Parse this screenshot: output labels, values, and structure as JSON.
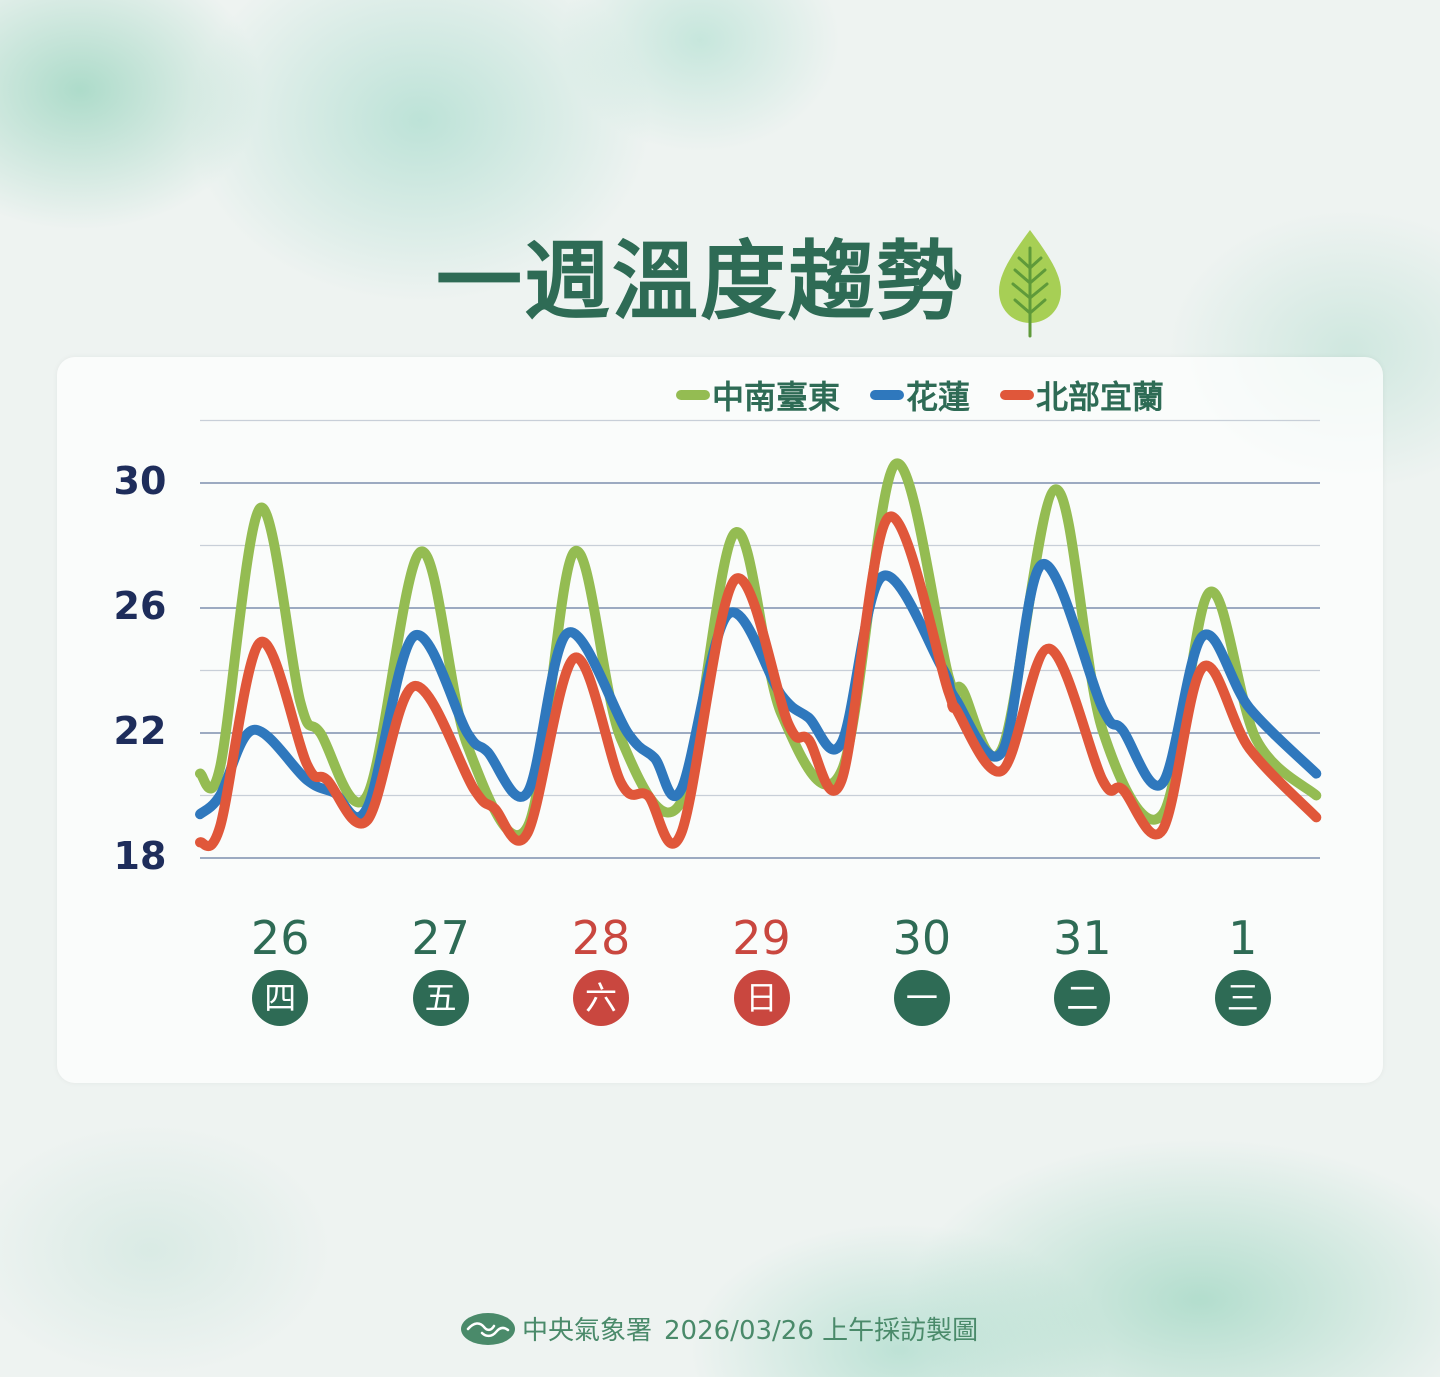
{
  "title": "一週溫度趨勢",
  "footer": {
    "agency": "中央氣象署",
    "text": "2026/03/26 上午採訪製圖"
  },
  "chart_data": {
    "type": "line",
    "title": "一週溫度趨勢",
    "xlabel": "",
    "ylabel": "",
    "ylim": [
      18,
      32
    ],
    "yticks": [
      "18",
      "22",
      "26",
      "30"
    ],
    "grid": true,
    "legend": "top-right",
    "days": [
      {
        "date": "26",
        "weekday": "四",
        "weekend": false
      },
      {
        "date": "27",
        "weekday": "五",
        "weekend": false
      },
      {
        "date": "28",
        "weekday": "六",
        "weekend": true
      },
      {
        "date": "29",
        "weekday": "日",
        "weekend": true
      },
      {
        "date": "30",
        "weekday": "一",
        "weekend": false
      },
      {
        "date": "31",
        "weekday": "二",
        "weekend": false
      },
      {
        "date": "1",
        "weekday": "三",
        "weekend": false
      }
    ],
    "series": [
      {
        "name": "中南臺東",
        "color": "#94bc52",
        "points": [
          [
            "03-26 00",
            20.7
          ],
          [
            "03-26 03",
            20.9
          ],
          [
            "03-26 09",
            29.2
          ],
          [
            "03-26 15",
            23.0
          ],
          [
            "03-26 18",
            22.0
          ],
          [
            "03-27 01",
            20.0
          ],
          [
            "03-27 09",
            27.8
          ],
          [
            "03-27 16",
            21.6
          ],
          [
            "03-28 01",
            19.0
          ],
          [
            "03-28 08",
            27.8
          ],
          [
            "03-28 15",
            21.8
          ],
          [
            "03-29 00",
            19.8
          ],
          [
            "03-29 08",
            28.4
          ],
          [
            "03-29 15",
            22.6
          ],
          [
            "03-30 00",
            20.8
          ],
          [
            "03-30 08",
            30.6
          ],
          [
            "03-30 16",
            23.8
          ],
          [
            "03-30 18",
            23.4
          ],
          [
            "03-31 00",
            21.5
          ],
          [
            "03-31 08",
            29.8
          ],
          [
            "03-31 15",
            22.1
          ],
          [
            "04-01 00",
            19.4
          ],
          [
            "04-01 07",
            26.5
          ],
          [
            "04-01 14",
            21.8
          ],
          [
            "04-01 23",
            20.0
          ]
        ]
      },
      {
        "name": "花蓮",
        "color": "#2f78bd",
        "points": [
          [
            "03-26 00",
            19.4
          ],
          [
            "03-26 03",
            20.0
          ],
          [
            "03-26 08",
            22.1
          ],
          [
            "03-26 16",
            20.5
          ],
          [
            "03-26 20",
            20.1
          ],
          [
            "03-27 01",
            19.6
          ],
          [
            "03-27 08",
            25.1
          ],
          [
            "03-27 16",
            22.0
          ],
          [
            "03-27 19",
            21.4
          ],
          [
            "03-28 01",
            20.1
          ],
          [
            "03-28 07",
            25.2
          ],
          [
            "03-28 16",
            22.0
          ],
          [
            "03-28 20",
            21.2
          ],
          [
            "03-29 00",
            20.2
          ],
          [
            "03-29 07",
            25.8
          ],
          [
            "03-29 15",
            23.2
          ],
          [
            "03-29 19",
            22.5
          ],
          [
            "03-30 00",
            21.7
          ],
          [
            "03-30 06",
            27.0
          ],
          [
            "03-30 15",
            24.1
          ],
          [
            "03-30 17",
            23.1
          ],
          [
            "03-31 00",
            21.4
          ],
          [
            "03-31 06",
            27.4
          ],
          [
            "03-31 15",
            22.8
          ],
          [
            "03-31 18",
            22.1
          ],
          [
            "04-01 00",
            20.4
          ],
          [
            "04-01 06",
            25.1
          ],
          [
            "04-01 13",
            22.8
          ],
          [
            "04-01 23",
            20.7
          ]
        ]
      },
      {
        "name": "北部宜蘭",
        "color": "#e0573a",
        "points": [
          [
            "03-26 00",
            18.5
          ],
          [
            "03-26 03",
            19.0
          ],
          [
            "03-26 09",
            24.9
          ],
          [
            "03-26 16",
            21.0
          ],
          [
            "03-26 19",
            20.5
          ],
          [
            "03-27 01",
            19.2
          ],
          [
            "03-27 08",
            23.5
          ],
          [
            "03-27 17",
            20.2
          ],
          [
            "03-27 20",
            19.6
          ],
          [
            "03-28 01",
            18.8
          ],
          [
            "03-28 08",
            24.4
          ],
          [
            "03-28 15",
            20.4
          ],
          [
            "03-28 19",
            20.0
          ],
          [
            "03-29 00",
            18.8
          ],
          [
            "03-29 08",
            26.9
          ],
          [
            "03-29 16",
            22.3
          ],
          [
            "03-29 19",
            21.8
          ],
          [
            "03-30 00",
            20.5
          ],
          [
            "03-30 07",
            28.9
          ],
          [
            "03-30 16",
            23.3
          ],
          [
            "03-30 17",
            22.8
          ],
          [
            "03-31 00",
            20.8
          ],
          [
            "03-31 07",
            24.7
          ],
          [
            "03-31 15",
            20.5
          ],
          [
            "03-31 18",
            20.2
          ],
          [
            "04-01 00",
            18.9
          ],
          [
            "04-01 06",
            24.1
          ],
          [
            "04-01 13",
            21.5
          ],
          [
            "04-01 23",
            19.3
          ]
        ]
      }
    ]
  },
  "colors": {
    "title": "#2e6b55",
    "axis": "#1e2d5b",
    "weekday": "#2e6b55",
    "weekend": "#c9473f"
  }
}
